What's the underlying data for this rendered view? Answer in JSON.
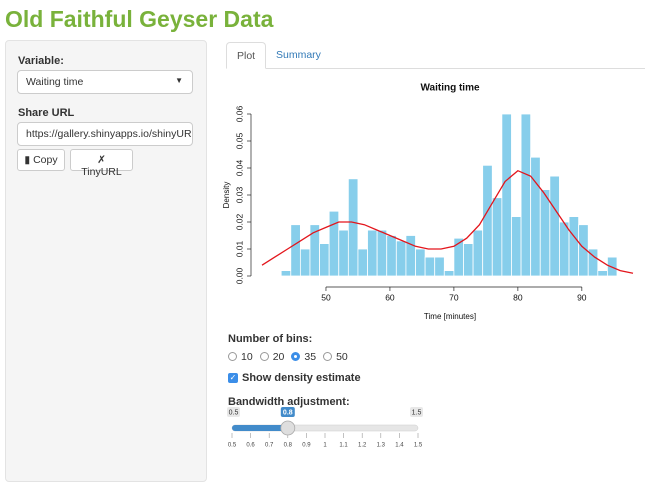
{
  "header": {
    "title": "Old Faithful Geyser Data"
  },
  "sidebar": {
    "variable_label": "Variable:",
    "variable_value": "Waiting time",
    "share_label": "Share URL",
    "share_url": "https://gallery.shinyapps.io/shinyURL/?",
    "buttons": [
      "Copy",
      "TinyURL"
    ]
  },
  "tabs": {
    "items": [
      "Plot",
      "Summary"
    ],
    "active": "Plot"
  },
  "chart_data": {
    "type": "histogram",
    "title": "Waiting time",
    "x_label": "Time [minutes]",
    "y_label": "Density",
    "bins": [
      43,
      44.5,
      46,
      47.5,
      49,
      50.5,
      52,
      53.5,
      55,
      56.5,
      58,
      59.5,
      61,
      62.5,
      64,
      65.5,
      67,
      68.5,
      70,
      71.5,
      73,
      74.5,
      76,
      77.5,
      79,
      80.5,
      82,
      83.5,
      85,
      86.5,
      88,
      89.5,
      91,
      92.5,
      94,
      95.5
    ],
    "values": [
      0.002,
      0.019,
      0.01,
      0.019,
      0.012,
      0.024,
      0.017,
      0.036,
      0.01,
      0.017,
      0.017,
      0.015,
      0.013,
      0.015,
      0.01,
      0.007,
      0.007,
      0.002,
      0.014,
      0.012,
      0.017,
      0.041,
      0.029,
      0.06,
      0.022,
      0.06,
      0.044,
      0.032,
      0.037,
      0.02,
      0.022,
      0.019,
      0.01,
      0.002,
      0.007
    ],
    "color": "#87ceeb",
    "density": {
      "color": "#e3151c",
      "x": [
        40,
        42,
        44,
        46,
        48,
        50,
        52,
        54,
        56,
        58,
        60,
        62,
        64,
        66,
        68,
        70,
        72,
        74,
        76,
        78,
        80,
        82,
        84,
        86,
        88,
        90,
        92,
        94,
        96,
        98
      ],
      "values": [
        0.004,
        0.007,
        0.01,
        0.013,
        0.016,
        0.018,
        0.02,
        0.02,
        0.019,
        0.017,
        0.015,
        0.013,
        0.011,
        0.01,
        0.01,
        0.011,
        0.014,
        0.019,
        0.027,
        0.035,
        0.039,
        0.037,
        0.031,
        0.024,
        0.017,
        0.011,
        0.007,
        0.004,
        0.002,
        0.001
      ]
    },
    "xlim": [
      40,
      98
    ],
    "ylim": [
      0,
      0.06
    ],
    "xticks": [
      50,
      60,
      70,
      80,
      90
    ],
    "yticks": [
      {
        "value": 0,
        "label": "0.00"
      },
      {
        "value": 0.01,
        "label": "0.01"
      },
      {
        "value": 0.02,
        "label": "0.02"
      },
      {
        "value": 0.03,
        "label": "0.03"
      },
      {
        "value": 0.04,
        "label": "0.04"
      },
      {
        "value": 0.05,
        "label": "0.05"
      },
      {
        "value": 0.06,
        "label": "0.06"
      }
    ]
  },
  "controls": {
    "bins": {
      "label": "Number of bins:",
      "options": [
        "10",
        "20",
        "35",
        "50"
      ],
      "selected": "35"
    },
    "density": {
      "label": "Show density estimate",
      "checked": true
    },
    "bandwidth": {
      "label": "Bandwidth adjustment:",
      "min": 0.5,
      "max": 1.5,
      "value": 0.8,
      "ticks": [
        0.5,
        0.6,
        0.7,
        0.8,
        0.9,
        1,
        1.1,
        1.2,
        1.3,
        1.4,
        1.5
      ]
    }
  }
}
